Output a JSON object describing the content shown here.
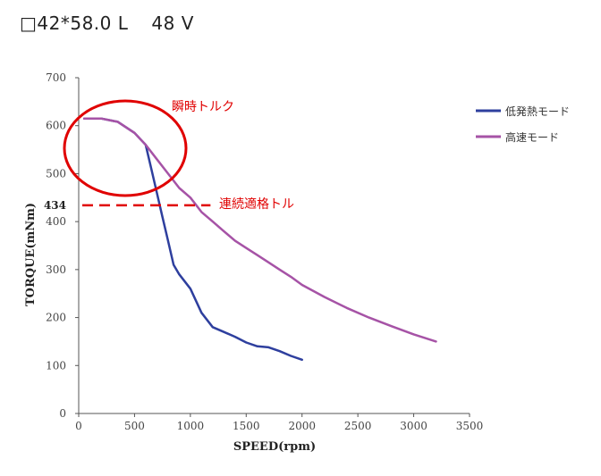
{
  "header": {
    "spec": "□42*58.0 L",
    "voltage": "48 V"
  },
  "chart_data": {
    "type": "line",
    "title": "",
    "xlabel": "SPEED(rpm)",
    "ylabel": "TORQUE(mNm)",
    "xlim": [
      0,
      3500
    ],
    "ylim": [
      0,
      700
    ],
    "x_ticks": [
      0,
      500,
      1000,
      1500,
      2000,
      2500,
      3000,
      3500
    ],
    "y_ticks": [
      0,
      100,
      200,
      300,
      400,
      500,
      600,
      700
    ],
    "grid": false,
    "legend_position": "right",
    "series": [
      {
        "name": "低発熱モード",
        "color": "#2e3f9e",
        "points": [
          [
            50,
            615
          ],
          [
            200,
            615
          ],
          [
            350,
            608
          ],
          [
            500,
            585
          ],
          [
            600,
            560
          ],
          [
            650,
            510
          ],
          [
            700,
            460
          ],
          [
            750,
            410
          ],
          [
            800,
            360
          ],
          [
            850,
            310
          ],
          [
            900,
            290
          ],
          [
            1000,
            260
          ],
          [
            1100,
            210
          ],
          [
            1200,
            180
          ],
          [
            1300,
            170
          ],
          [
            1400,
            160
          ],
          [
            1500,
            148
          ],
          [
            1600,
            140
          ],
          [
            1700,
            138
          ],
          [
            1800,
            130
          ],
          [
            1900,
            120
          ],
          [
            2000,
            112
          ]
        ]
      },
      {
        "name": "高速モード",
        "color": "#a653a6",
        "points": [
          [
            50,
            615
          ],
          [
            200,
            615
          ],
          [
            350,
            608
          ],
          [
            500,
            585
          ],
          [
            600,
            560
          ],
          [
            700,
            530
          ],
          [
            800,
            500
          ],
          [
            900,
            470
          ],
          [
            1000,
            450
          ],
          [
            1100,
            420
          ],
          [
            1200,
            400
          ],
          [
            1300,
            380
          ],
          [
            1400,
            360
          ],
          [
            1500,
            345
          ],
          [
            1600,
            330
          ],
          [
            1700,
            315
          ],
          [
            1800,
            300
          ],
          [
            1900,
            285
          ],
          [
            2000,
            268
          ],
          [
            2200,
            243
          ],
          [
            2400,
            220
          ],
          [
            2600,
            200
          ],
          [
            2800,
            182
          ],
          [
            3000,
            165
          ],
          [
            3200,
            150
          ]
        ]
      }
    ],
    "annotations": {
      "instant_torque": {
        "label": "瞬時トルク",
        "color": "#e00000"
      },
      "continuous_rated": {
        "label": "連続適格トル",
        "value": 434,
        "value_label": "434",
        "x_range": [
          0,
          1100
        ],
        "color": "#e00000"
      }
    }
  }
}
